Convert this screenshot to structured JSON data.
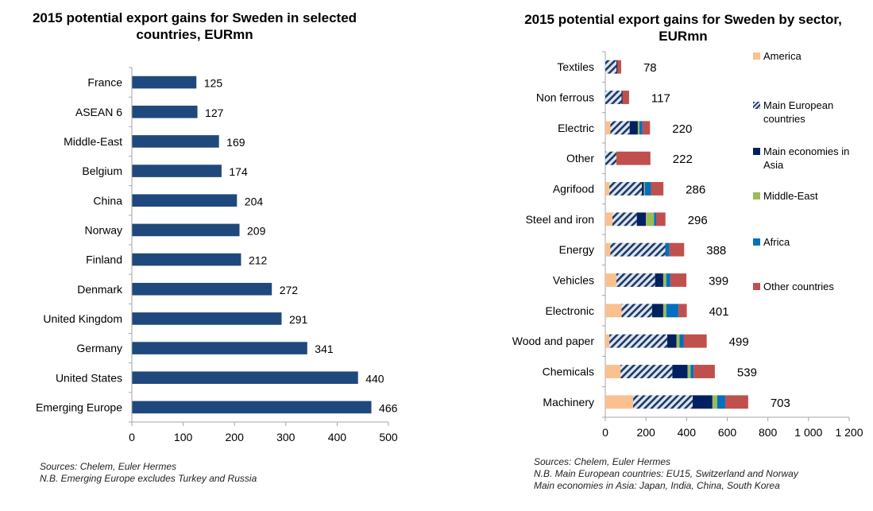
{
  "chart_data": [
    {
      "type": "bar",
      "orientation": "horizontal",
      "title": "2015 potential export gains for Sweden in selected countries, EURmn",
      "categories": [
        "France",
        "ASEAN 6",
        "Middle-East",
        "Belgium",
        "China",
        "Norway",
        "Finland",
        "Denmark",
        "United Kingdom",
        "Germany",
        "United States",
        "Emerging Europe"
      ],
      "values": [
        125,
        127,
        169,
        174,
        204,
        209,
        212,
        272,
        291,
        341,
        440,
        466
      ],
      "data_labels": [
        "125",
        "127",
        "169",
        "174",
        "204",
        "209",
        "212",
        "272",
        "291",
        "341",
        "440",
        "466"
      ],
      "xlabel": "",
      "ylabel": "",
      "xlim": [
        0,
        500
      ],
      "xticks": [
        0,
        100,
        200,
        300,
        400,
        500
      ],
      "xtick_labels": [
        "0",
        "100",
        "200",
        "300",
        "400",
        "500"
      ],
      "grid": false,
      "bar_color": "#1f497d",
      "notes": [
        "Sources: Chelem, Euler Hermes",
        "N.B. Emerging Europe excludes Turkey and Russia"
      ]
    },
    {
      "type": "bar",
      "orientation": "horizontal",
      "stacked": true,
      "title": "2015 potential export gains for Sweden by sector, EURmn",
      "categories": [
        "Textiles",
        "Non ferrous",
        "Electric",
        "Other",
        "Agrifood",
        "Steel and iron",
        "Energy",
        "Vehicles",
        "Electronic",
        "Wood and paper",
        "Chemicals",
        "Machinery"
      ],
      "totals": [
        78,
        117,
        220,
        222,
        286,
        296,
        388,
        399,
        401,
        499,
        539,
        703
      ],
      "total_labels": [
        "78",
        "117",
        "220",
        "222",
        "286",
        "296",
        "388",
        "399",
        "401",
        "499",
        "539",
        "703"
      ],
      "series": [
        {
          "name": "America",
          "color": "#fac090",
          "pattern": "solid",
          "values": [
            0,
            0,
            25,
            0,
            20,
            35,
            25,
            55,
            80,
            20,
            75,
            137
          ]
        },
        {
          "name": "Main European countries",
          "color": "#1f3864",
          "pattern": "hatch",
          "values": [
            55,
            80,
            95,
            55,
            160,
            120,
            270,
            190,
            150,
            285,
            255,
            293
          ]
        },
        {
          "name": "Main economies in Asia",
          "color": "#002060",
          "pattern": "solid",
          "values": [
            5,
            5,
            40,
            0,
            10,
            45,
            0,
            40,
            55,
            45,
            75,
            97
          ]
        },
        {
          "name": "Middle-East",
          "color": "#9bbb59",
          "pattern": "solid",
          "values": [
            0,
            0,
            8,
            0,
            5,
            40,
            0,
            15,
            15,
            15,
            15,
            24
          ]
        },
        {
          "name": "Africa",
          "color": "#0070c0",
          "pattern": "solid",
          "values": [
            0,
            0,
            15,
            0,
            30,
            10,
            20,
            20,
            60,
            20,
            15,
            39
          ]
        },
        {
          "name": "Other countries",
          "color": "#c0504d",
          "pattern": "solid",
          "values": [
            18,
            32,
            37,
            167,
            61,
            46,
            73,
            79,
            41,
            114,
            104,
            113
          ]
        }
      ],
      "xlabel": "",
      "ylabel": "",
      "xlim": [
        0,
        1200
      ],
      "xticks": [
        0,
        200,
        400,
        600,
        800,
        1000,
        1200
      ],
      "xtick_labels": [
        "0",
        "200",
        "400",
        "600",
        "800",
        "1 000",
        "1 200"
      ],
      "grid": false,
      "legend": "right",
      "notes": [
        "Sources: Chelem, Euler Hermes",
        "N.B. Main European  countries: EU15, Switzerland and Norway",
        "Main economies in Asia: Japan, India, China, South Korea"
      ]
    }
  ]
}
